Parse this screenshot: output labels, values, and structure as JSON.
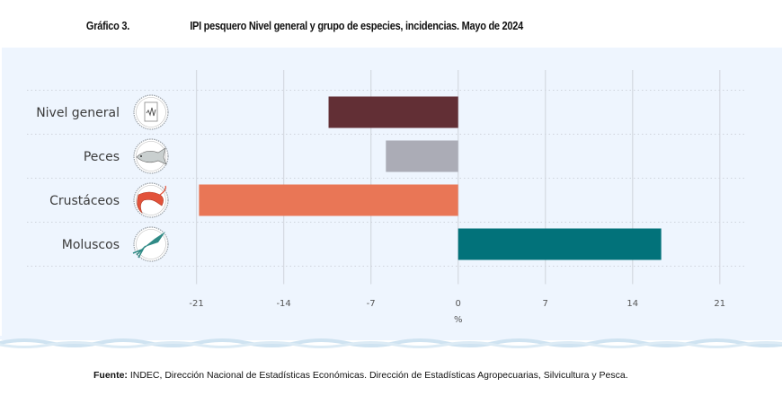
{
  "header": {
    "figure_number": "Gráfico 3.",
    "title": "IPI pesquero Nivel general y grupo de especies, incidencias. Mayo de 2024"
  },
  "source": {
    "label": "Fuente:",
    "text": " INDEC, Dirección Nacional de Estadísticas Económicas. Dirección de Estadísticas Agropecuarias, Silvicultura y Pesca."
  },
  "chart_data": {
    "type": "bar",
    "orientation": "horizontal",
    "title": "IPI pesquero Nivel general y grupo de especies, incidencias. Mayo de 2024",
    "xlabel": "%",
    "ylabel": "",
    "categories": [
      "Nivel general",
      "Peces",
      "Crustáceos",
      "Moluscos"
    ],
    "icons": [
      "chart-document-icon",
      "fish-icon",
      "shrimp-icon",
      "squid-icon"
    ],
    "values": [
      -10.4,
      -5.8,
      -20.8,
      16.3
    ],
    "colors": [
      "#622f35",
      "#abacb6",
      "#e97656",
      "#02727a"
    ],
    "xlim": [
      -21,
      21
    ],
    "xticks": [
      -21,
      -14,
      -7,
      0,
      7,
      14,
      21
    ],
    "xtick_labels": [
      "-21",
      "-14",
      "-7",
      "0",
      "7",
      "14",
      "21"
    ],
    "grid": true,
    "legend": "none"
  }
}
